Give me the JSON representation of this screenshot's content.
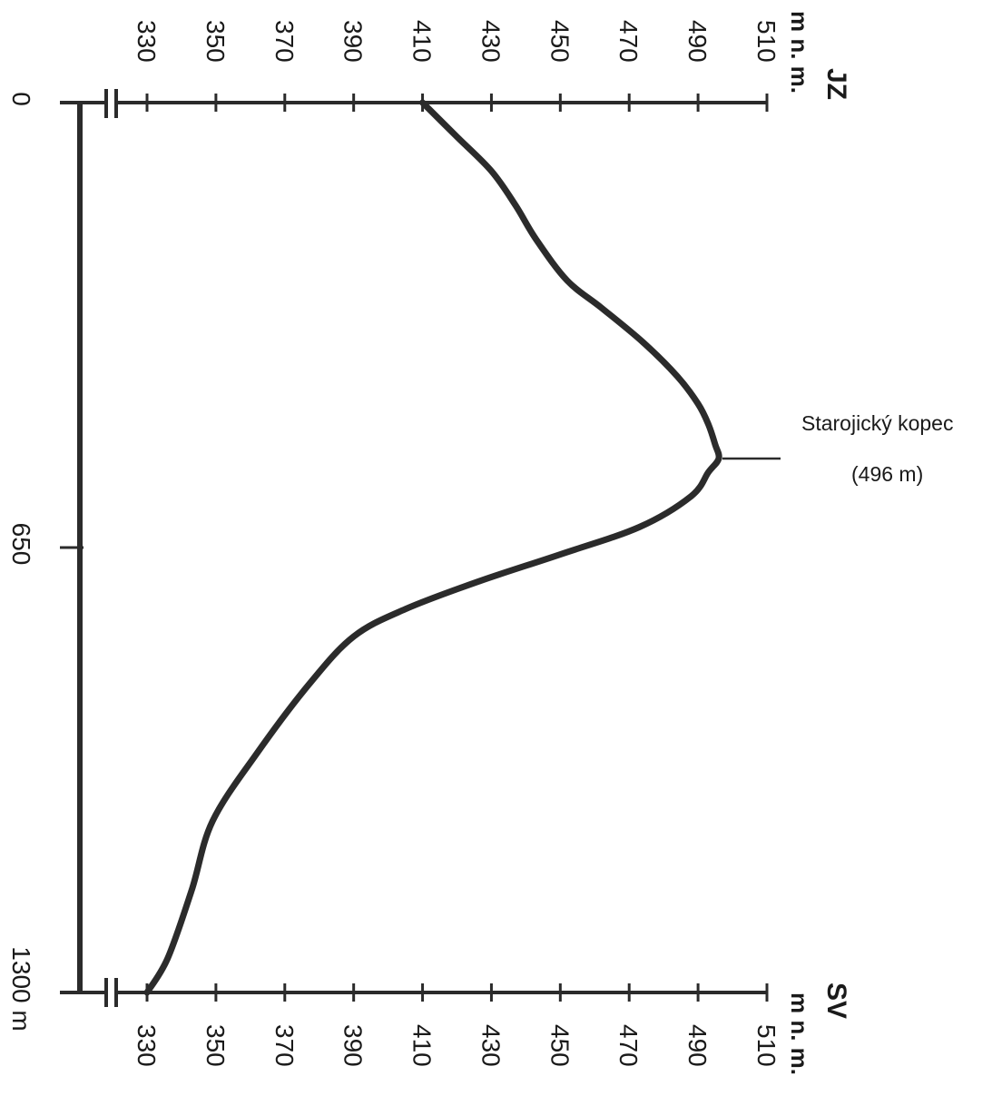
{
  "chart_data": {
    "type": "line",
    "orientation": "rotated-90-cw",
    "x": [
      0,
      50,
      100,
      150,
      200,
      260,
      300,
      350,
      400,
      440,
      470,
      500,
      520,
      540,
      575,
      620,
      660,
      700,
      740,
      780,
      850,
      950,
      1050,
      1150,
      1250,
      1300
    ],
    "y": [
      410,
      420,
      430,
      437,
      443,
      452,
      462,
      474,
      484,
      490,
      493,
      495,
      496,
      493,
      488,
      473,
      450,
      426,
      405,
      390,
      377,
      362,
      349,
      343,
      336,
      330
    ],
    "xlim": [
      0,
      1300
    ],
    "ylim": [
      330,
      510
    ],
    "x_ticks": [
      "0",
      "650",
      "1300 m"
    ],
    "y_ticks": [
      "330",
      "350",
      "370",
      "390",
      "410",
      "430",
      "450",
      "470",
      "490",
      "510"
    ],
    "left_end_label": "JZ",
    "right_end_label": "SV",
    "unit_label": "m n. m.",
    "annotation": {
      "name": "Starojický kopec",
      "elevation": "(496 m)",
      "x": 520,
      "y": 496
    },
    "colors": {
      "line": "#2b2b2b",
      "axis": "#2b2b2b"
    }
  }
}
